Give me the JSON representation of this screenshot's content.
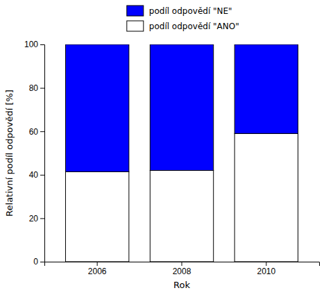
{
  "chart_data": {
    "type": "bar",
    "stacked": true,
    "categories": [
      "2006",
      "2008",
      "2010"
    ],
    "series": [
      {
        "name": "podíl odpovědí \"ANO\"",
        "color": "#ffffff",
        "values": [
          41.4,
          42.0,
          59.0
        ]
      },
      {
        "name": "podíl odpovědí \"NE\"",
        "color": "#0000ff",
        "values": [
          58.6,
          58.0,
          41.0
        ]
      }
    ],
    "xlabel": "Rok",
    "ylabel": "Relativní podíl odpovědí [%]",
    "ylim": [
      0,
      100
    ],
    "yticks": [
      0,
      20,
      40,
      60,
      80,
      100
    ],
    "legend": "top"
  }
}
